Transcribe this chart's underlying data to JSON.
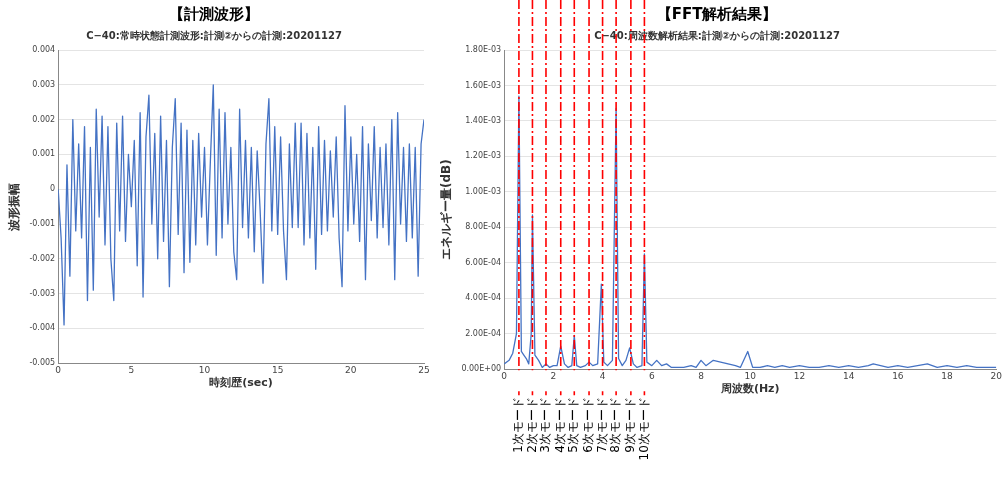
{
  "chart_data": [
    {
      "type": "line",
      "title": "【計測波形】",
      "subtitle": "C−40:常時状態計測波形:計測②からの計測:20201127",
      "xlabel": "時刻歴(sec)",
      "ylabel": "波形振幅",
      "x": [
        0,
        0.2,
        0.4,
        0.6,
        0.8,
        1.0,
        1.2,
        1.4,
        1.6,
        1.8,
        2.0,
        2.2,
        2.4,
        2.6,
        2.8,
        3.0,
        3.2,
        3.4,
        3.6,
        3.8,
        4.0,
        4.2,
        4.4,
        4.6,
        4.8,
        5.0,
        5.2,
        5.4,
        5.6,
        5.8,
        6.0,
        6.2,
        6.4,
        6.6,
        6.8,
        7.0,
        7.2,
        7.4,
        7.6,
        7.8,
        8.0,
        8.2,
        8.4,
        8.6,
        8.8,
        9.0,
        9.2,
        9.4,
        9.6,
        9.8,
        10.0,
        10.2,
        10.4,
        10.6,
        10.8,
        11.0,
        11.2,
        11.4,
        11.6,
        11.8,
        12.0,
        12.2,
        12.4,
        12.6,
        12.8,
        13.0,
        13.2,
        13.4,
        13.6,
        13.8,
        14.0,
        14.2,
        14.4,
        14.6,
        14.8,
        15.0,
        15.2,
        15.4,
        15.6,
        15.8,
        16.0,
        16.2,
        16.4,
        16.6,
        16.8,
        17.0,
        17.2,
        17.4,
        17.6,
        17.8,
        18.0,
        18.2,
        18.4,
        18.6,
        18.8,
        19.0,
        19.2,
        19.4,
        19.6,
        19.8,
        20.0,
        20.2,
        20.4,
        20.6,
        20.8,
        21.0,
        21.2,
        21.4,
        21.6,
        21.8,
        22.0,
        22.2,
        22.4,
        22.6,
        22.8,
        23.0,
        23.2,
        23.4,
        23.6,
        23.8,
        24.0,
        24.2,
        24.4,
        24.6,
        24.8,
        25.0
      ],
      "series": [
        {
          "color": "#4472c4",
          "values": [
            0,
            -0.0014,
            -0.0039,
            0.0007,
            -0.0025,
            0.002,
            -0.0012,
            0.0013,
            -0.0014,
            0.0018,
            -0.0032,
            0.0012,
            -0.0029,
            0.0023,
            -0.0008,
            0.0021,
            -0.0016,
            0.0018,
            -0.002,
            -0.0032,
            0.0019,
            -0.0012,
            0.0021,
            -0.0015,
            0.001,
            -0.0005,
            0.0014,
            -0.0022,
            0.0022,
            -0.0031,
            0.0015,
            0.0027,
            -0.001,
            0.0016,
            -0.002,
            0.0021,
            -0.0015,
            0.0014,
            -0.0028,
            0.0012,
            0.0026,
            -0.0013,
            0.0019,
            -0.0024,
            0.0017,
            -0.0021,
            0.0014,
            -0.0016,
            0.0016,
            -0.0008,
            0.0012,
            -0.0016,
            0.0008,
            0.003,
            -0.0019,
            0.0023,
            -0.0014,
            0.0022,
            -0.001,
            0.0012,
            -0.0018,
            -0.0026,
            0.0023,
            -0.0011,
            0.0014,
            -0.0014,
            0.0012,
            -0.0018,
            0.0011,
            -0.0006,
            -0.0027,
            0.0013,
            0.0026,
            -0.0012,
            0.0018,
            -0.0013,
            0.0015,
            -0.0012,
            -0.0026,
            0.0013,
            -0.0011,
            0.0019,
            -0.0011,
            0.0019,
            -0.0016,
            0.0016,
            -0.0014,
            0.0012,
            -0.0023,
            0.0018,
            -0.0013,
            0.0014,
            -0.0012,
            0.0011,
            -0.0008,
            0.0015,
            -0.0014,
            -0.0028,
            0.0024,
            -0.0012,
            0.0015,
            -0.001,
            0.001,
            -0.0015,
            0.0018,
            -0.0026,
            0.0013,
            -0.0009,
            0.0018,
            -0.0014,
            0.0012,
            -0.0011,
            0.0013,
            -0.0016,
            0.002,
            -0.0026,
            0.0022,
            -0.001,
            0.0012,
            -0.0015,
            0.0013,
            -0.0014,
            0.0012,
            -0.0025,
            0.0013,
            0.002
          ]
        }
      ],
      "xlim": [
        0,
        25
      ],
      "xticks": [
        0,
        5,
        10,
        15,
        20,
        25
      ],
      "ylim": [
        -0.005,
        0.004
      ],
      "yticks": [
        -0.005,
        -0.004,
        -0.003,
        -0.002,
        -0.001,
        0,
        0.001,
        0.002,
        0.003,
        0.004
      ],
      "grid": "y",
      "marker": "none"
    },
    {
      "type": "line",
      "title": "【FFT解析結果】",
      "subtitle": "C−40:周波数解析結果:計測②からの計測:20201127",
      "xlabel": "周波数(Hz)",
      "ylabel": "エネルギー量(dB)",
      "x": [
        0,
        0.2,
        0.35,
        0.5,
        0.6,
        0.7,
        0.8,
        0.9,
        1.0,
        1.1,
        1.15,
        1.25,
        1.4,
        1.55,
        1.7,
        1.85,
        2.0,
        2.15,
        2.3,
        2.45,
        2.6,
        2.75,
        2.85,
        2.95,
        3.1,
        3.3,
        3.45,
        3.6,
        3.8,
        3.95,
        4.05,
        4.2,
        4.4,
        4.55,
        4.65,
        4.8,
        4.95,
        5.1,
        5.25,
        5.4,
        5.6,
        5.7,
        5.8,
        6.0,
        6.2,
        6.4,
        6.6,
        6.8,
        7.0,
        7.3,
        7.6,
        7.8,
        8.0,
        8.2,
        8.5,
        8.8,
        9.1,
        9.4,
        9.6,
        9.9,
        10.1,
        10.4,
        10.7,
        11.0,
        11.3,
        11.6,
        12.0,
        12.4,
        12.8,
        13.2,
        13.6,
        14.0,
        14.4,
        14.8,
        15.0,
        15.3,
        15.6,
        16.0,
        16.4,
        16.8,
        17.2,
        17.6,
        18.0,
        18.4,
        18.8,
        19.2,
        19.6,
        20
      ],
      "series": [
        {
          "color": "#4472c4",
          "values": [
            3e-05,
            5e-05,
            9e-05,
            0.0002,
            0.00154,
            0.0001,
            8e-05,
            6e-05,
            3e-05,
            0.0002,
            0.00087,
            8e-05,
            5e-05,
            1e-05,
            3e-05,
            1e-05,
            2e-05,
            2e-05,
            0.00013,
            3e-05,
            1e-05,
            2e-05,
            0.00019,
            2e-05,
            1e-05,
            2e-05,
            4e-05,
            2e-05,
            3e-05,
            0.00048,
            4e-05,
            2e-05,
            5e-05,
            0.00147,
            6e-05,
            2e-05,
            5e-05,
            0.00012,
            3e-05,
            1e-05,
            2e-05,
            0.00065,
            4e-05,
            2e-05,
            5e-05,
            2e-05,
            3e-05,
            1e-05,
            1e-05,
            1e-05,
            2e-05,
            1e-05,
            5e-05,
            2e-05,
            5e-05,
            4e-05,
            3e-05,
            2e-05,
            1e-05,
            0.0001,
            1e-05,
            1e-05,
            2e-05,
            1e-05,
            2e-05,
            1e-05,
            2e-05,
            1e-05,
            1e-05,
            2e-05,
            1e-05,
            2e-05,
            1e-05,
            2e-05,
            3e-05,
            2e-05,
            1e-05,
            2e-05,
            1e-05,
            2e-05,
            3e-05,
            1e-05,
            2e-05,
            1e-05,
            2e-05,
            1e-05,
            1e-05,
            1e-05
          ]
        }
      ],
      "xlim": [
        0,
        20
      ],
      "xticks": [
        0,
        2,
        4,
        6,
        8,
        10,
        12,
        14,
        16,
        18,
        20
      ],
      "ylim": [
        0,
        0.0018
      ],
      "yticks": [
        {
          "value": 0,
          "label": "0.00E+00"
        },
        {
          "value": 0.0002,
          "label": "2.00E-04"
        },
        {
          "value": 0.0004,
          "label": "4.00E-04"
        },
        {
          "value": 0.0006,
          "label": "6.00E-04"
        },
        {
          "value": 0.0008,
          "label": "8.00E-04"
        },
        {
          "value": 0.001,
          "label": "1.00E-03"
        },
        {
          "value": 0.0012,
          "label": "1.20E-03"
        },
        {
          "value": 0.0014,
          "label": "1.40E-03"
        },
        {
          "value": 0.0016,
          "label": "1.60E-03"
        },
        {
          "value": 0.0018,
          "label": "1.80E-03"
        }
      ],
      "ref_lines": [
        {
          "axis": "x",
          "value": 0.6,
          "label": "1次モード",
          "color": "#ff0000",
          "line_style": "dashed"
        },
        {
          "axis": "x",
          "value": 1.15,
          "label": "2次モード",
          "color": "#ff0000",
          "line_style": "dashed"
        },
        {
          "axis": "x",
          "value": 1.7,
          "label": "3次モード",
          "color": "#ff0000",
          "line_style": "dashed"
        },
        {
          "axis": "x",
          "value": 2.3,
          "label": "4次モード",
          "color": "#ff0000",
          "line_style": "dashed"
        },
        {
          "axis": "x",
          "value": 2.85,
          "label": "5次モード",
          "color": "#ff0000",
          "line_style": "dashed"
        },
        {
          "axis": "x",
          "value": 3.45,
          "label": "6次モード",
          "color": "#ff0000",
          "line_style": "dashed"
        },
        {
          "axis": "x",
          "value": 4.0,
          "label": "7次モード",
          "color": "#ff0000",
          "line_style": "dashed"
        },
        {
          "axis": "x",
          "value": 4.55,
          "label": "8次モード",
          "color": "#ff0000",
          "line_style": "dashed"
        },
        {
          "axis": "x",
          "value": 5.15,
          "label": "9次モード",
          "color": "#ff0000",
          "line_style": "dashed"
        },
        {
          "axis": "x",
          "value": 5.7,
          "label": "10次モード",
          "color": "#ff0000",
          "line_style": "dashed"
        }
      ],
      "grid": "y",
      "marker": "none"
    }
  ]
}
